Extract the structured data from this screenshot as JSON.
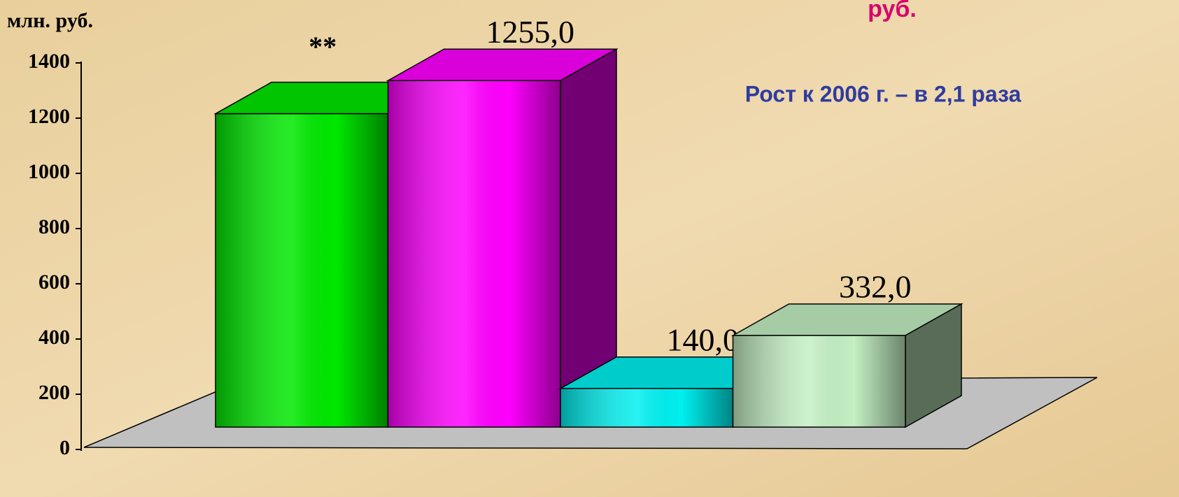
{
  "chart_data": {
    "type": "bar3d",
    "y_axis_label": "млн. руб.",
    "annotations": [
      "руб.",
      "Рост к 2006 г. – в 2,1 раза",
      "**"
    ],
    "categories": [
      null,
      null,
      null,
      null
    ],
    "values": [
      1135,
      1255,
      140,
      332
    ],
    "value_labels": [
      null,
      "1255,0",
      "140,0",
      "332,0"
    ],
    "colors": [
      "#00e800",
      "#ff00ff",
      "#00f0f0",
      "#c4f0c4"
    ],
    "ylim": [
      0,
      1400
    ],
    "yticks": [
      0,
      200,
      400,
      600,
      800,
      1000,
      1200,
      1400
    ]
  }
}
